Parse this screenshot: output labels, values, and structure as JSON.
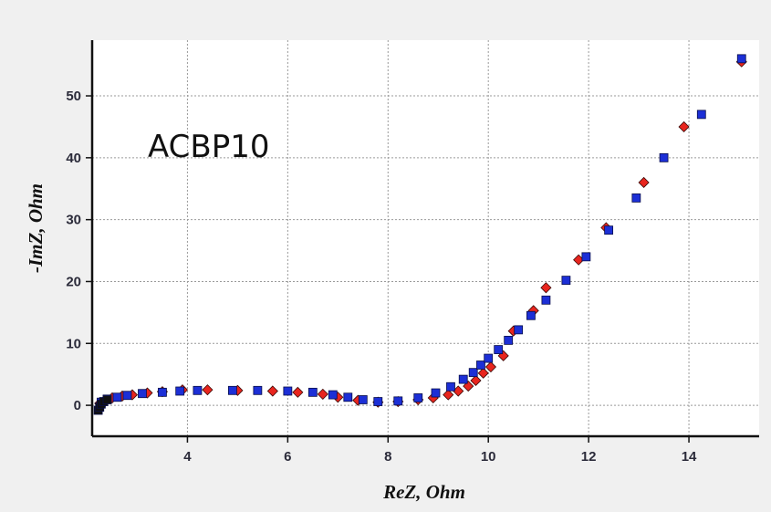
{
  "chart_data": {
    "type": "scatter",
    "title": "",
    "xlabel": "ReZ, Ohm",
    "ylabel": "-ImZ, Ohm",
    "annotation": "ACBP10",
    "xlim": [
      2.1,
      15.4
    ],
    "ylim": [
      -5,
      59
    ],
    "x_ticks": [
      4,
      6,
      8,
      10,
      12,
      14
    ],
    "y_ticks": [
      0,
      10,
      20,
      30,
      40,
      50
    ],
    "grid": true,
    "legend": "none",
    "colors": {
      "series_a": "#e8251e",
      "series_b": "#1c2fd6",
      "series_c": "#101010",
      "plot_bg": "#ffffff",
      "page_bg": "#f0f0f0",
      "axis": "#111111"
    },
    "series": [
      {
        "marker": "diamond",
        "color": "#e8251e",
        "x": [
          2.25,
          2.35,
          2.5,
          2.7,
          2.9,
          3.2,
          3.5,
          3.9,
          4.4,
          5.0,
          5.7,
          6.2,
          6.7,
          7.0,
          7.4,
          7.8,
          8.2,
          8.6,
          8.9,
          9.2,
          9.4,
          9.6,
          9.75,
          9.9,
          10.05,
          10.3,
          10.5,
          10.9,
          11.15,
          11.8,
          12.35,
          13.1,
          13.9,
          15.05
        ],
        "y": [
          0.3,
          0.8,
          1.2,
          1.5,
          1.7,
          2.0,
          2.2,
          2.5,
          2.5,
          2.4,
          2.3,
          2.1,
          1.8,
          1.3,
          0.8,
          0.5,
          0.6,
          0.9,
          1.2,
          1.7,
          2.3,
          3.1,
          4.0,
          5.2,
          6.2,
          8.0,
          12.0,
          15.3,
          19.0,
          23.5,
          28.7,
          36.0,
          45.0,
          55.5
        ]
      },
      {
        "marker": "square",
        "color": "#1c2fd6",
        "x": [
          2.28,
          2.4,
          2.6,
          2.8,
          3.1,
          3.5,
          3.85,
          4.2,
          4.9,
          5.4,
          6.0,
          6.5,
          6.9,
          7.2,
          7.5,
          7.8,
          8.2,
          8.6,
          8.95,
          9.25,
          9.5,
          9.7,
          9.85,
          10.0,
          10.2,
          10.4,
          10.6,
          10.85,
          11.15,
          11.55,
          11.95,
          12.4,
          12.95,
          13.5,
          14.25,
          15.05
        ],
        "y": [
          0.5,
          1.0,
          1.3,
          1.6,
          1.9,
          2.1,
          2.3,
          2.4,
          2.4,
          2.4,
          2.3,
          2.1,
          1.7,
          1.3,
          0.9,
          0.6,
          0.7,
          1.2,
          2.0,
          3.0,
          4.2,
          5.3,
          6.5,
          7.6,
          9.0,
          10.5,
          12.2,
          14.5,
          17.0,
          20.2,
          24.0,
          28.3,
          33.5,
          40.0,
          47.0,
          56.0
        ]
      },
      {
        "marker": "square",
        "color": "#101010",
        "x": [
          2.22,
          2.25,
          2.28,
          2.33,
          2.4
        ],
        "y": [
          -0.8,
          -0.3,
          0.2,
          0.6,
          0.9
        ]
      }
    ]
  }
}
